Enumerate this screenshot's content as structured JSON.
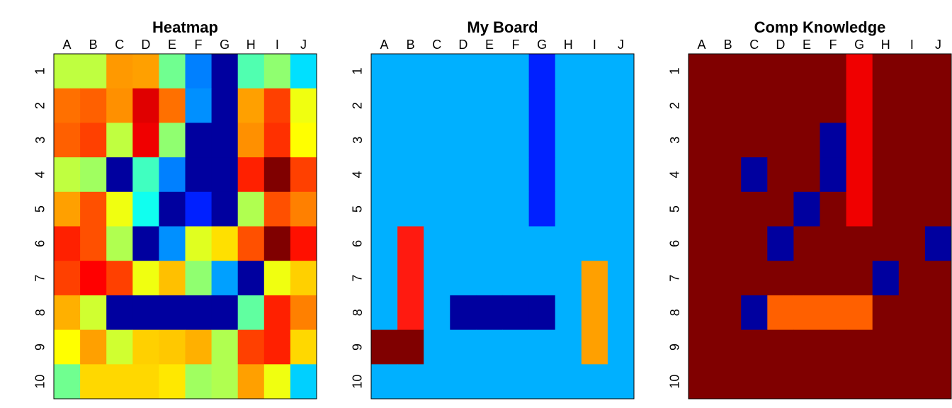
{
  "chart_data": [
    {
      "type": "heatmap",
      "title": "Heatmap",
      "columns": [
        "A",
        "B",
        "C",
        "D",
        "E",
        "F",
        "G",
        "H",
        "I",
        "J"
      ],
      "rows": [
        "1",
        "2",
        "3",
        "4",
        "5",
        "6",
        "7",
        "8",
        "9",
        "10"
      ],
      "colors": [
        [
          "#bfff40",
          "#bfff40",
          "#ff9900",
          "#ffa000",
          "#70ff90",
          "#0080ff",
          "#00009f",
          "#50ffb0",
          "#90ff70",
          "#00e0ff"
        ],
        [
          "#ff7000",
          "#ff6000",
          "#ff9000",
          "#e00000",
          "#ff7000",
          "#0090ff",
          "#00009f",
          "#ffa000",
          "#ff4000",
          "#f0ff10"
        ],
        [
          "#ff6000",
          "#ff4000",
          "#c0ff40",
          "#f00000",
          "#90ff70",
          "#00009f",
          "#00009f",
          "#ff9000",
          "#ff3000",
          "#ffff00"
        ],
        [
          "#c0ff40",
          "#a0ff60",
          "#00009f",
          "#40ffc0",
          "#0080ff",
          "#00009f",
          "#00009f",
          "#ff2000",
          "#800000",
          "#ff4000"
        ],
        [
          "#ffa000",
          "#ff5000",
          "#f0ff10",
          "#10ffef",
          "#00009f",
          "#0020ff",
          "#00009f",
          "#b0ff50",
          "#ff5000",
          "#ff8000"
        ],
        [
          "#ff2000",
          "#ff5000",
          "#b0ff50",
          "#00009f",
          "#0090ff",
          "#e0ff20",
          "#ffe000",
          "#ff5000",
          "#800000",
          "#ff1000"
        ],
        [
          "#ff4000",
          "#ff0000",
          "#ff4000",
          "#f0ff10",
          "#ffc000",
          "#90ff70",
          "#00a0ff",
          "#00009f",
          "#f0ff10",
          "#ffd000"
        ],
        [
          "#ffb000",
          "#d0ff30",
          "#00009f",
          "#00009f",
          "#00009f",
          "#00009f",
          "#00009f",
          "#60ffa0",
          "#ff2000",
          "#ff8000"
        ],
        [
          "#ffff00",
          "#ffa000",
          "#d0ff30",
          "#ffd000",
          "#ffc800",
          "#ffb000",
          "#b0ff50",
          "#ff4000",
          "#ff2000",
          "#ffd800"
        ],
        [
          "#70ff90",
          "#ffd800",
          "#ffd800",
          "#ffd800",
          "#ffe800",
          "#a0ff60",
          "#b0ff50",
          "#ffa000",
          "#f0ff10",
          "#00d0ff"
        ]
      ]
    },
    {
      "type": "heatmap",
      "title": "My Board",
      "columns": [
        "A",
        "B",
        "C",
        "D",
        "E",
        "F",
        "G",
        "H",
        "I",
        "J"
      ],
      "rows": [
        "1",
        "2",
        "3",
        "4",
        "5",
        "6",
        "7",
        "8",
        "9",
        "10"
      ],
      "colors": [
        [
          "#00b0ff",
          "#00b0ff",
          "#00b0ff",
          "#00b0ff",
          "#00b0ff",
          "#00b0ff",
          "#0020ff",
          "#00b0ff",
          "#00b0ff",
          "#00b0ff"
        ],
        [
          "#00b0ff",
          "#00b0ff",
          "#00b0ff",
          "#00b0ff",
          "#00b0ff",
          "#00b0ff",
          "#0020ff",
          "#00b0ff",
          "#00b0ff",
          "#00b0ff"
        ],
        [
          "#00b0ff",
          "#00b0ff",
          "#00b0ff",
          "#00b0ff",
          "#00b0ff",
          "#00b0ff",
          "#0020ff",
          "#00b0ff",
          "#00b0ff",
          "#00b0ff"
        ],
        [
          "#00b0ff",
          "#00b0ff",
          "#00b0ff",
          "#00b0ff",
          "#00b0ff",
          "#00b0ff",
          "#0020ff",
          "#00b0ff",
          "#00b0ff",
          "#00b0ff"
        ],
        [
          "#00b0ff",
          "#00b0ff",
          "#00b0ff",
          "#00b0ff",
          "#00b0ff",
          "#00b0ff",
          "#0020ff",
          "#00b0ff",
          "#00b0ff",
          "#00b0ff"
        ],
        [
          "#00b0ff",
          "#ff1a10",
          "#00b0ff",
          "#00b0ff",
          "#00b0ff",
          "#00b0ff",
          "#00b0ff",
          "#00b0ff",
          "#00b0ff",
          "#00b0ff"
        ],
        [
          "#00b0ff",
          "#ff1a10",
          "#00b0ff",
          "#00b0ff",
          "#00b0ff",
          "#00b0ff",
          "#00b0ff",
          "#00b0ff",
          "#ffa000",
          "#00b0ff"
        ],
        [
          "#00b0ff",
          "#ff1a10",
          "#00b0ff",
          "#00009f",
          "#00009f",
          "#00009f",
          "#00009f",
          "#00b0ff",
          "#ffa000",
          "#00b0ff"
        ],
        [
          "#800000",
          "#800000",
          "#00b0ff",
          "#00b0ff",
          "#00b0ff",
          "#00b0ff",
          "#00b0ff",
          "#00b0ff",
          "#ffa000",
          "#00b0ff"
        ],
        [
          "#00b0ff",
          "#00b0ff",
          "#00b0ff",
          "#00b0ff",
          "#00b0ff",
          "#00b0ff",
          "#00b0ff",
          "#00b0ff",
          "#00b0ff",
          "#00b0ff"
        ]
      ]
    },
    {
      "type": "heatmap",
      "title": "Comp Knowledge",
      "columns": [
        "A",
        "B",
        "C",
        "D",
        "E",
        "F",
        "G",
        "H",
        "I",
        "J"
      ],
      "rows": [
        "1",
        "2",
        "3",
        "4",
        "5",
        "6",
        "7",
        "8",
        "9",
        "10"
      ],
      "colors": [
        [
          "#800000",
          "#800000",
          "#800000",
          "#800000",
          "#800000",
          "#800000",
          "#f00000",
          "#800000",
          "#800000",
          "#800000"
        ],
        [
          "#800000",
          "#800000",
          "#800000",
          "#800000",
          "#800000",
          "#800000",
          "#f00000",
          "#800000",
          "#800000",
          "#800000"
        ],
        [
          "#800000",
          "#800000",
          "#800000",
          "#800000",
          "#800000",
          "#00009f",
          "#f00000",
          "#800000",
          "#800000",
          "#800000"
        ],
        [
          "#800000",
          "#800000",
          "#00009f",
          "#800000",
          "#800000",
          "#00009f",
          "#f00000",
          "#800000",
          "#800000",
          "#800000"
        ],
        [
          "#800000",
          "#800000",
          "#800000",
          "#800000",
          "#00009f",
          "#800000",
          "#f00000",
          "#800000",
          "#800000",
          "#800000"
        ],
        [
          "#800000",
          "#800000",
          "#800000",
          "#00009f",
          "#800000",
          "#800000",
          "#800000",
          "#800000",
          "#800000",
          "#00009f"
        ],
        [
          "#800000",
          "#800000",
          "#800000",
          "#800000",
          "#800000",
          "#800000",
          "#800000",
          "#00009f",
          "#800000",
          "#800000"
        ],
        [
          "#800000",
          "#800000",
          "#00009f",
          "#ff6000",
          "#ff6000",
          "#ff6000",
          "#ff6000",
          "#800000",
          "#800000",
          "#800000"
        ],
        [
          "#800000",
          "#800000",
          "#800000",
          "#800000",
          "#800000",
          "#800000",
          "#800000",
          "#800000",
          "#800000",
          "#800000"
        ],
        [
          "#800000",
          "#800000",
          "#800000",
          "#800000",
          "#800000",
          "#800000",
          "#800000",
          "#800000",
          "#800000",
          "#800000"
        ]
      ]
    }
  ]
}
